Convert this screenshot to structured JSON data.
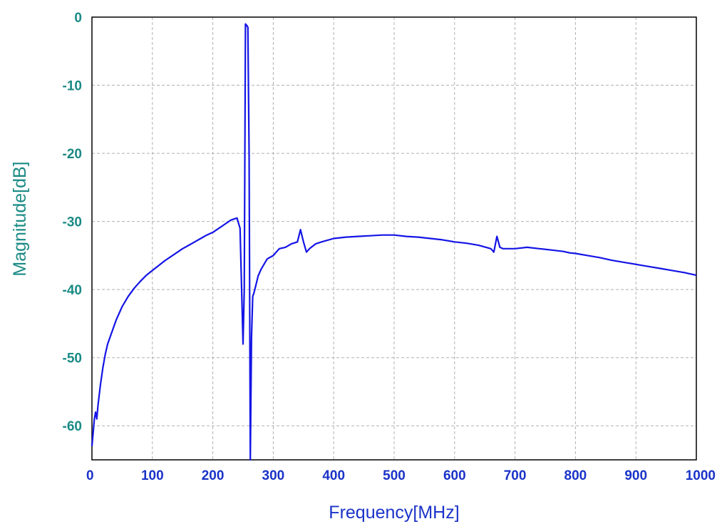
{
  "chart_data": {
    "type": "line",
    "title": "",
    "xlabel": "Frequency[MHz]",
    "ylabel": "Magnitude[dB]",
    "xlim": [
      0,
      1000
    ],
    "ylim": [
      -65,
      0
    ],
    "x_ticks": [
      0,
      100,
      200,
      300,
      400,
      500,
      600,
      700,
      800,
      900,
      1000
    ],
    "y_ticks": [
      0,
      -10,
      -20,
      -30,
      -40,
      -50,
      -60
    ],
    "grid": true,
    "legend": "none",
    "colors": {
      "line": "#1414e6",
      "xtick": "#1a33c8",
      "ytick": "#1a8a84",
      "grid": "#b0b0b0"
    },
    "series": [
      {
        "x": [
          0,
          2,
          4,
          6,
          8,
          10,
          14,
          18,
          22,
          26,
          30,
          40,
          50,
          60,
          70,
          80,
          90,
          100,
          110,
          120,
          130,
          140,
          150,
          160,
          170,
          180,
          190,
          200,
          210,
          220,
          230,
          240,
          245,
          250,
          252,
          254,
          256,
          258,
          260,
          262,
          264,
          266,
          268,
          270,
          275,
          280,
          290,
          300,
          310,
          320,
          330,
          340,
          345,
          350,
          355,
          360,
          370,
          380,
          400,
          420,
          440,
          460,
          480,
          500,
          520,
          540,
          560,
          580,
          600,
          620,
          640,
          660,
          665,
          670,
          675,
          680,
          700,
          720,
          740,
          760,
          780,
          790,
          800,
          820,
          840,
          860,
          880,
          900,
          920,
          940,
          960,
          980,
          1000
        ],
        "y": [
          -63,
          -61,
          -59,
          -58,
          -59,
          -57,
          -54,
          -51.5,
          -49.5,
          -48,
          -47,
          -44.5,
          -42.5,
          -41,
          -39.8,
          -38.8,
          -37.9,
          -37.2,
          -36.5,
          -35.8,
          -35.2,
          -34.6,
          -34,
          -33.5,
          -33,
          -32.5,
          -32,
          -31.6,
          -31,
          -30.4,
          -29.8,
          -29.5,
          -31,
          -48,
          -40,
          -1,
          -1.2,
          -1.5,
          -20,
          -65,
          -47,
          -41,
          -40.5,
          -39.8,
          -38,
          -37,
          -35.5,
          -35,
          -34,
          -33.8,
          -33.3,
          -33,
          -31.2,
          -33,
          -34.5,
          -34,
          -33.3,
          -33,
          -32.5,
          -32.3,
          -32.2,
          -32.1,
          -32,
          -32,
          -32.2,
          -32.3,
          -32.5,
          -32.7,
          -33,
          -33.2,
          -33.5,
          -34,
          -34.5,
          -32.2,
          -33.8,
          -34,
          -34,
          -33.8,
          -34,
          -34.2,
          -34.4,
          -34.6,
          -34.7,
          -35,
          -35.3,
          -35.7,
          -36,
          -36.3,
          -36.6,
          -36.9,
          -37.2,
          -37.5,
          -37.9
        ]
      }
    ]
  }
}
